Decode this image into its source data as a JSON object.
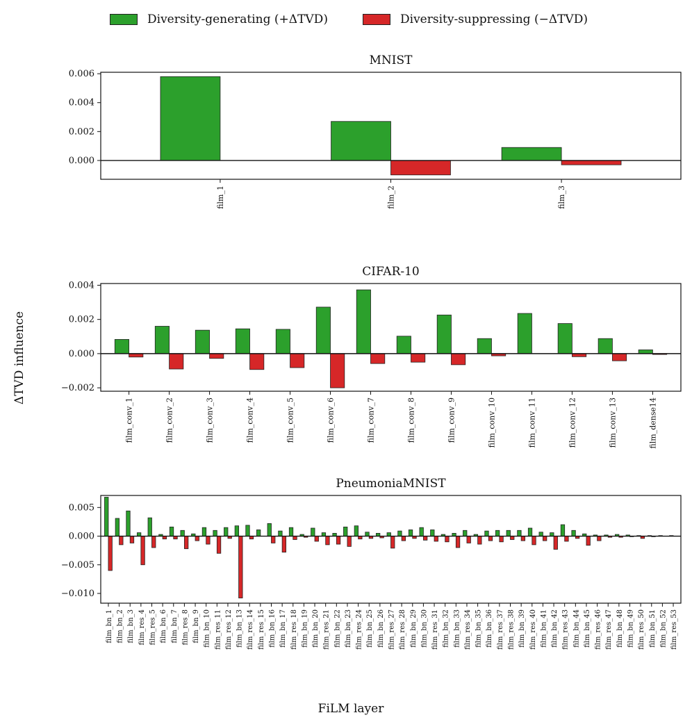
{
  "legend": {
    "pos_label": "Diversity-generating (+ΔTVD)",
    "neg_label": "Diversity-suppressing (−ΔTVD)",
    "pos_color": "#2ca02c",
    "neg_color": "#d62728"
  },
  "ylabel": "ΔTVD influence",
  "xlabel": "FiLM layer",
  "chart_data": [
    {
      "type": "bar",
      "title": "MNIST",
      "categories": [
        "film_1",
        "film_2",
        "film_3"
      ],
      "series": [
        {
          "name": "Diversity-generating (+ΔTVD)",
          "values": [
            0.0058,
            0.0027,
            0.0009
          ]
        },
        {
          "name": "Diversity-suppressing (−ΔTVD)",
          "values": [
            0,
            -0.001,
            -0.0003
          ]
        }
      ],
      "ylim": [
        -0.0013,
        0.0061
      ],
      "yticks": [
        0.0,
        0.002,
        0.004,
        0.006
      ],
      "ytick_labels": [
        "0.000",
        "0.002",
        "0.004",
        "0.006"
      ]
    },
    {
      "type": "bar",
      "title": "CIFAR-10",
      "categories": [
        "film_conv_1",
        "film_conv_2",
        "film_conv_3",
        "film_conv_4",
        "film_conv_5",
        "film_conv_6",
        "film_conv_7",
        "film_conv_8",
        "film_conv_9",
        "film_conv_10",
        "film_conv_11",
        "film_conv_12",
        "film_conv_13",
        "film_dense14"
      ],
      "series": [
        {
          "name": "Diversity-generating (+ΔTVD)",
          "values": [
            0.00083,
            0.0016,
            0.00137,
            0.00145,
            0.00142,
            0.00272,
            0.00373,
            0.00102,
            0.00226,
            0.00088,
            0.00235,
            0.00176,
            0.00088,
            0.00022
          ]
        },
        {
          "name": "Diversity-suppressing (−ΔTVD)",
          "values": [
            -0.0002,
            -0.0009,
            -0.00028,
            -0.00093,
            -0.00082,
            -0.002,
            -0.00058,
            -0.0005,
            -0.00065,
            -0.00013,
            0,
            -0.00018,
            -0.00042,
            -5e-05
          ]
        }
      ],
      "ylim": [
        -0.0022,
        0.0041
      ],
      "yticks": [
        -0.002,
        0.0,
        0.002,
        0.004
      ],
      "ytick_labels": [
        "−0.002",
        "0.000",
        "0.002",
        "0.004"
      ]
    },
    {
      "type": "bar",
      "title": "PneumoniaMNIST",
      "categories": [
        "film_bn_1",
        "film_bn_2",
        "film_bn_3",
        "film_res_4",
        "film_res_5",
        "film_bn_6",
        "film_bn_7",
        "film_res_8",
        "film_bn_9",
        "film_bn_10",
        "film_res_11",
        "film_res_12",
        "film_bn_13",
        "film_res_14",
        "film_res_15",
        "film_bn_16",
        "film_bn_17",
        "film_res_18",
        "film_bn_19",
        "film_bn_20",
        "film_res_21",
        "film_bn_22",
        "film_bn_23",
        "film_res_24",
        "film_bn_25",
        "film_bn_26",
        "film_res_27",
        "film_res_28",
        "film_bn_29",
        "film_bn_30",
        "film_res_31",
        "film_bn_32",
        "film_bn_33",
        "film_res_34",
        "film_bn_35",
        "film_bn_36",
        "film_res_37",
        "film_res_38",
        "film_bn_39",
        "film_res_40",
        "film_bn_41",
        "film_bn_42",
        "film_res_43",
        "film_bn_44",
        "film_bn_45",
        "film_res_46",
        "film_res_47",
        "film_bn_48",
        "film_bn_49",
        "film_res_50",
        "film_bn_51",
        "film_bn_52",
        "film_res_53"
      ],
      "series": [
        {
          "name": "Diversity-generating (+ΔTVD)",
          "values": [
            0.0068,
            0.0031,
            0.0044,
            0.0006,
            0.0032,
            0.0003,
            0.0016,
            0.001,
            0.0004,
            0.0015,
            0.001,
            0.0015,
            0.0018,
            0.0019,
            0.0011,
            0.0022,
            0.0009,
            0.0015,
            0.0003,
            0.0014,
            0.0006,
            0.0005,
            0.0016,
            0.0018,
            0.0007,
            0.0005,
            0.0006,
            0.0009,
            0.0011,
            0.0015,
            0.0011,
            0.0003,
            0.0005,
            0.001,
            0.0003,
            0.0009,
            0.001,
            0.001,
            0.001,
            0.0014,
            0.0007,
            0.0006,
            0.002,
            0.001,
            0.0004,
            0.0002,
            0.0002,
            0.0003,
            0.0002,
            0.0001,
            0.0001,
            0.0001,
            0.0001
          ]
        },
        {
          "name": "Diversity-suppressing (−ΔTVD)",
          "values": [
            -0.006,
            -0.0015,
            -0.0012,
            -0.005,
            -0.002,
            -0.0005,
            -0.0005,
            -0.0022,
            -0.0008,
            -0.0014,
            -0.003,
            -0.0004,
            -0.0108,
            -0.0005,
            0,
            -0.0012,
            -0.0028,
            -0.0006,
            -0.0002,
            -0.0009,
            -0.0015,
            -0.0014,
            -0.0018,
            -0.0005,
            -0.0004,
            -0.0003,
            -0.0021,
            -0.0008,
            -0.0004,
            -0.0007,
            -0.0009,
            -0.001,
            -0.002,
            -0.0012,
            -0.0014,
            -0.0008,
            -0.001,
            -0.0006,
            -0.0008,
            -0.0015,
            -0.0008,
            -0.0023,
            -0.0009,
            -0.0004,
            -0.0016,
            -0.0008,
            -0.0002,
            -0.0002,
            -0.0001,
            -0.0004,
            -0.0001,
            0,
            0
          ]
        }
      ],
      "ylim": [
        -0.0117,
        0.0071
      ],
      "yticks": [
        -0.01,
        -0.005,
        0.0,
        0.005
      ],
      "ytick_labels": [
        "−0.010",
        "−0.005",
        "0.000",
        "0.005"
      ]
    }
  ]
}
